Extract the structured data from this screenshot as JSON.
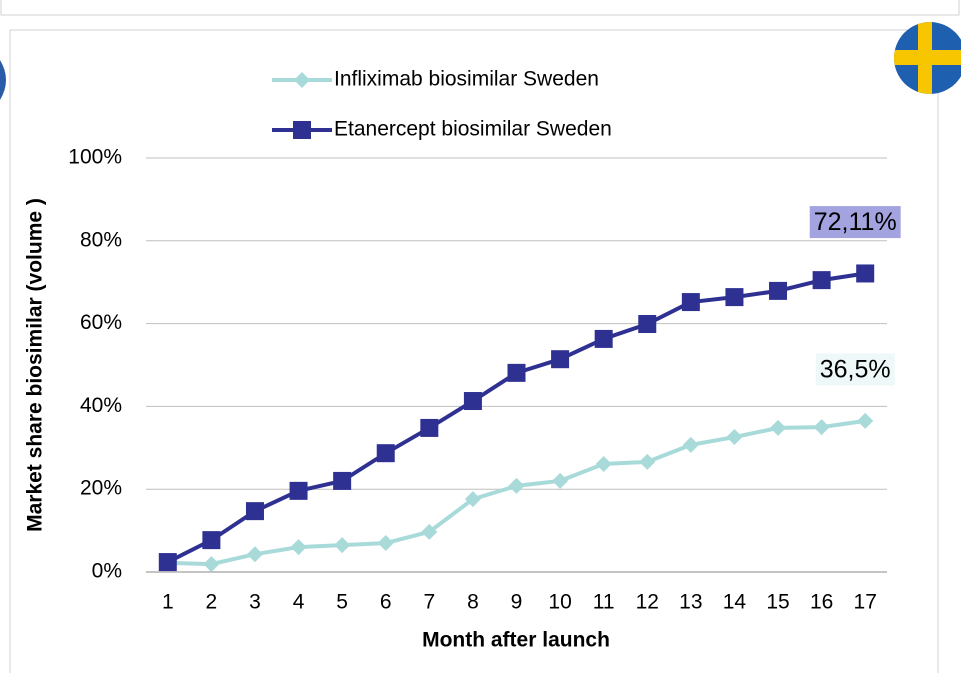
{
  "chart_data": {
    "type": "line",
    "y_label": "Market share biosimilar  (volume )",
    "x_label": "Month after launch",
    "categories": [
      "1",
      "2",
      "3",
      "4",
      "5",
      "6",
      "7",
      "8",
      "9",
      "10",
      "11",
      "12",
      "13",
      "14",
      "15",
      "16",
      "17"
    ],
    "series": [
      {
        "name": "Infliximab biosimilar Sweden",
        "color": "#a9dada",
        "marker": "diamond",
        "label_bg": "#eef8f8",
        "values": [
          2.2,
          1.9,
          4.3,
          6,
          6.5,
          7,
          9.7,
          17.6,
          20.8,
          22,
          26.1,
          26.6,
          30.7,
          32.6,
          34.8,
          35,
          36.5
        ],
        "value_labels": [
          null,
          null,
          null,
          null,
          null,
          null,
          null,
          null,
          null,
          null,
          null,
          null,
          null,
          null,
          null,
          null,
          "36,5%"
        ]
      },
      {
        "name": "Etanercept biosimilar Sweden",
        "color": "#2e3192",
        "marker": "square",
        "label_bg": "#a3a3e0",
        "values": [
          2.4,
          7.7,
          14.7,
          19.6,
          22,
          28.7,
          34.8,
          41.3,
          48.1,
          51.4,
          56.3,
          59.9,
          65.2,
          66.4,
          67.9,
          70.5,
          72.11
        ],
        "value_labels": [
          null,
          null,
          null,
          null,
          null,
          null,
          null,
          null,
          null,
          null,
          null,
          null,
          null,
          null,
          null,
          null,
          "72,11%"
        ]
      }
    ],
    "ylim": [
      0,
      100
    ],
    "yticks": [
      {
        "value": 0,
        "label": "0%"
      },
      {
        "value": 20,
        "label": "20%"
      },
      {
        "value": 40,
        "label": "40%"
      },
      {
        "value": 60,
        "label": "60%"
      },
      {
        "value": 80,
        "label": "80%"
      },
      {
        "value": 100,
        "label": "100%"
      }
    ],
    "grid": true
  }
}
